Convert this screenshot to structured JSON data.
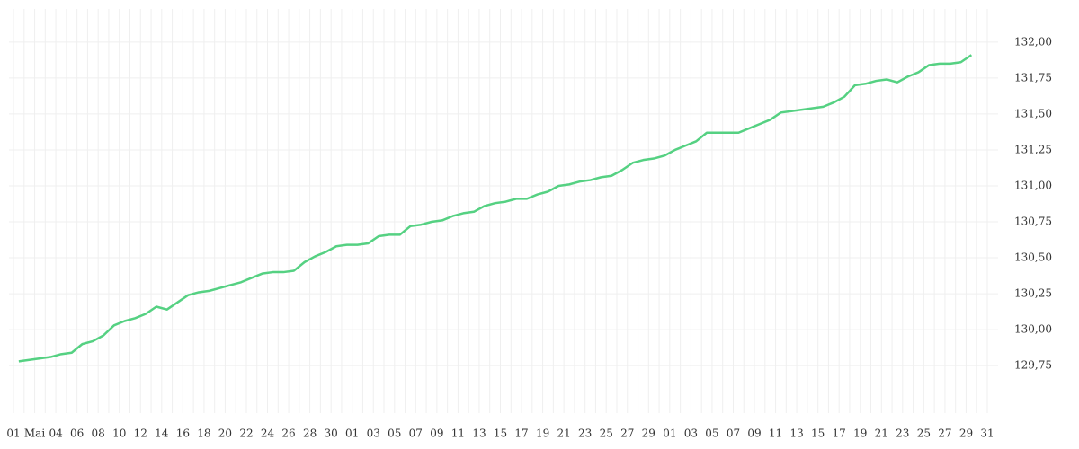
{
  "chart_data": {
    "type": "line",
    "categories": [
      "01",
      null,
      "Mai",
      null,
      "04",
      null,
      "06",
      null,
      "08",
      null,
      "10",
      null,
      "12",
      null,
      "14",
      null,
      "16",
      null,
      "18",
      null,
      "20",
      null,
      "22",
      null,
      "24",
      null,
      "26",
      null,
      "28",
      null,
      "30",
      null,
      "01",
      null,
      "03",
      null,
      "05",
      null,
      "07",
      null,
      "09",
      null,
      "11",
      null,
      "13",
      null,
      "15",
      null,
      "17",
      null,
      "19",
      null,
      "21",
      null,
      "23",
      null,
      "25",
      null,
      "27",
      null,
      "29",
      null,
      "01",
      null,
      "03",
      null,
      "05",
      null,
      "07",
      null,
      "09",
      null,
      "11",
      null,
      "13",
      null,
      "15",
      null,
      "17",
      null,
      "19",
      null,
      "21",
      null,
      "23",
      null,
      "25",
      null,
      "27",
      null,
      "29",
      null,
      "31"
    ],
    "series": [
      {
        "color": "#55d182",
        "values": [
          129.78,
          129.79,
          129.8,
          129.81,
          129.83,
          129.84,
          129.9,
          129.92,
          129.96,
          130.03,
          130.06,
          130.08,
          130.11,
          130.16,
          130.14,
          130.19,
          130.24,
          130.26,
          130.27,
          130.29,
          130.31,
          130.33,
          130.36,
          130.39,
          130.4,
          130.4,
          130.41,
          130.47,
          130.51,
          130.54,
          130.58,
          130.59,
          130.59,
          130.6,
          130.65,
          130.66,
          130.66,
          130.72,
          130.73,
          130.75,
          130.76,
          130.79,
          130.81,
          130.82,
          130.86,
          130.88,
          130.89,
          130.91,
          130.91,
          130.94,
          130.96,
          131.0,
          131.01,
          131.03,
          131.04,
          131.06,
          131.07,
          131.11,
          131.16,
          131.18,
          131.19,
          131.21,
          131.25,
          131.28,
          131.31,
          131.37,
          131.37,
          131.37,
          131.37,
          131.4,
          131.43,
          131.46,
          131.51,
          131.52,
          131.53,
          131.54,
          131.55,
          131.58,
          131.62,
          131.7,
          131.71,
          131.73,
          131.74,
          131.72,
          131.76,
          131.79,
          131.84,
          131.85,
          131.85,
          131.86,
          131.91,
          null,
          null
        ]
      }
    ],
    "ylim": [
      129.42,
      132.23
    ],
    "yticks": [
      {
        "value": 129.75,
        "label": "129,75"
      },
      {
        "value": 130,
        "label": "130,00"
      },
      {
        "value": 130.25,
        "label": "130,25"
      },
      {
        "value": 130.5,
        "label": "130,50"
      },
      {
        "value": 130.75,
        "label": "130,75"
      },
      {
        "value": 131,
        "label": "131,00"
      },
      {
        "value": 131.25,
        "label": "131,25"
      },
      {
        "value": 131.5,
        "label": "131,50"
      },
      {
        "value": 131.75,
        "label": "131,75"
      },
      {
        "value": 132,
        "label": "132,00"
      }
    ],
    "grid": true
  }
}
